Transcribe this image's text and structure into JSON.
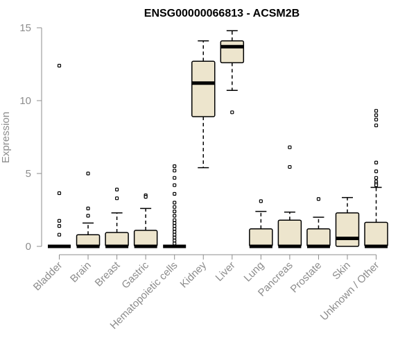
{
  "chart_data": {
    "type": "boxplot",
    "title": "ENSG00000066813 - ACSM2B",
    "xlabel": "",
    "ylabel": "Expression",
    "ylim": [
      0,
      15
    ],
    "yticks": [
      0,
      5,
      10,
      15
    ],
    "grid": false,
    "colors": {
      "box_fill": "#ede5cd",
      "box_stroke": "#000000",
      "axis": "#8c8c8c",
      "text": "#8c8c8c"
    },
    "categories": [
      "Bladder",
      "Brain",
      "Breast",
      "Gastric",
      "Hematopoietic cells",
      "Kidney",
      "Liver",
      "Lung",
      "Pancreas",
      "Prostate",
      "Skin",
      "Unknown / Other"
    ],
    "boxes": [
      {
        "category": "Bladder",
        "min": 0,
        "q1": 0,
        "median": 0,
        "q3": 0,
        "max": 0,
        "outliers": [
          12.4,
          3.65,
          1.75,
          1.4,
          0.8
        ]
      },
      {
        "category": "Brain",
        "min": 0,
        "q1": 0,
        "median": 0,
        "q3": 0.8,
        "max": 1.6,
        "outliers": [
          5.0,
          2.6,
          2.1
        ]
      },
      {
        "category": "Breast",
        "min": 0,
        "q1": 0,
        "median": 0,
        "q3": 0.95,
        "max": 2.3,
        "outliers": [
          3.9,
          3.3
        ]
      },
      {
        "category": "Gastric",
        "min": 0,
        "q1": 0,
        "median": 0,
        "q3": 1.1,
        "max": 2.6,
        "outliers": [
          3.5,
          3.4
        ]
      },
      {
        "category": "Hematopoietic cells",
        "min": 0,
        "q1": 0,
        "median": 0,
        "q3": 0,
        "max": 0,
        "outliers": [
          5.5,
          5.2,
          4.7,
          4.2,
          3.6,
          3.0,
          2.7,
          2.4,
          2.1,
          1.8,
          1.6,
          1.4,
          1.2,
          1.0,
          0.8,
          0.6,
          0.4,
          0.2
        ]
      },
      {
        "category": "Kidney",
        "min": 5.4,
        "q1": 8.9,
        "median": 11.2,
        "q3": 12.7,
        "max": 14.1,
        "outliers": []
      },
      {
        "category": "Liver",
        "min": 10.7,
        "q1": 12.6,
        "median": 13.7,
        "q3": 14.1,
        "max": 14.8,
        "outliers": [
          9.2
        ]
      },
      {
        "category": "Lung",
        "min": 0,
        "q1": 0,
        "median": 0,
        "q3": 1.2,
        "max": 2.4,
        "outliers": [
          3.1
        ]
      },
      {
        "category": "Pancreas",
        "min": 0,
        "q1": 0,
        "median": 0,
        "q3": 1.8,
        "max": 2.35,
        "outliers": [
          6.8,
          5.45
        ]
      },
      {
        "category": "Prostate",
        "min": 0,
        "q1": 0,
        "median": 0,
        "q3": 1.2,
        "max": 2.0,
        "outliers": [
          3.25
        ]
      },
      {
        "category": "Skin",
        "min": 0,
        "q1": 0,
        "median": 0.55,
        "q3": 2.3,
        "max": 3.35,
        "outliers": []
      },
      {
        "category": "Unknown / Other",
        "min": 0,
        "q1": 0,
        "median": 0,
        "q3": 1.65,
        "max": 4.05,
        "outliers": [
          9.3,
          9.0,
          8.7,
          8.3,
          5.75,
          5.15,
          4.7,
          4.45,
          4.3,
          4.2
        ]
      }
    ]
  }
}
